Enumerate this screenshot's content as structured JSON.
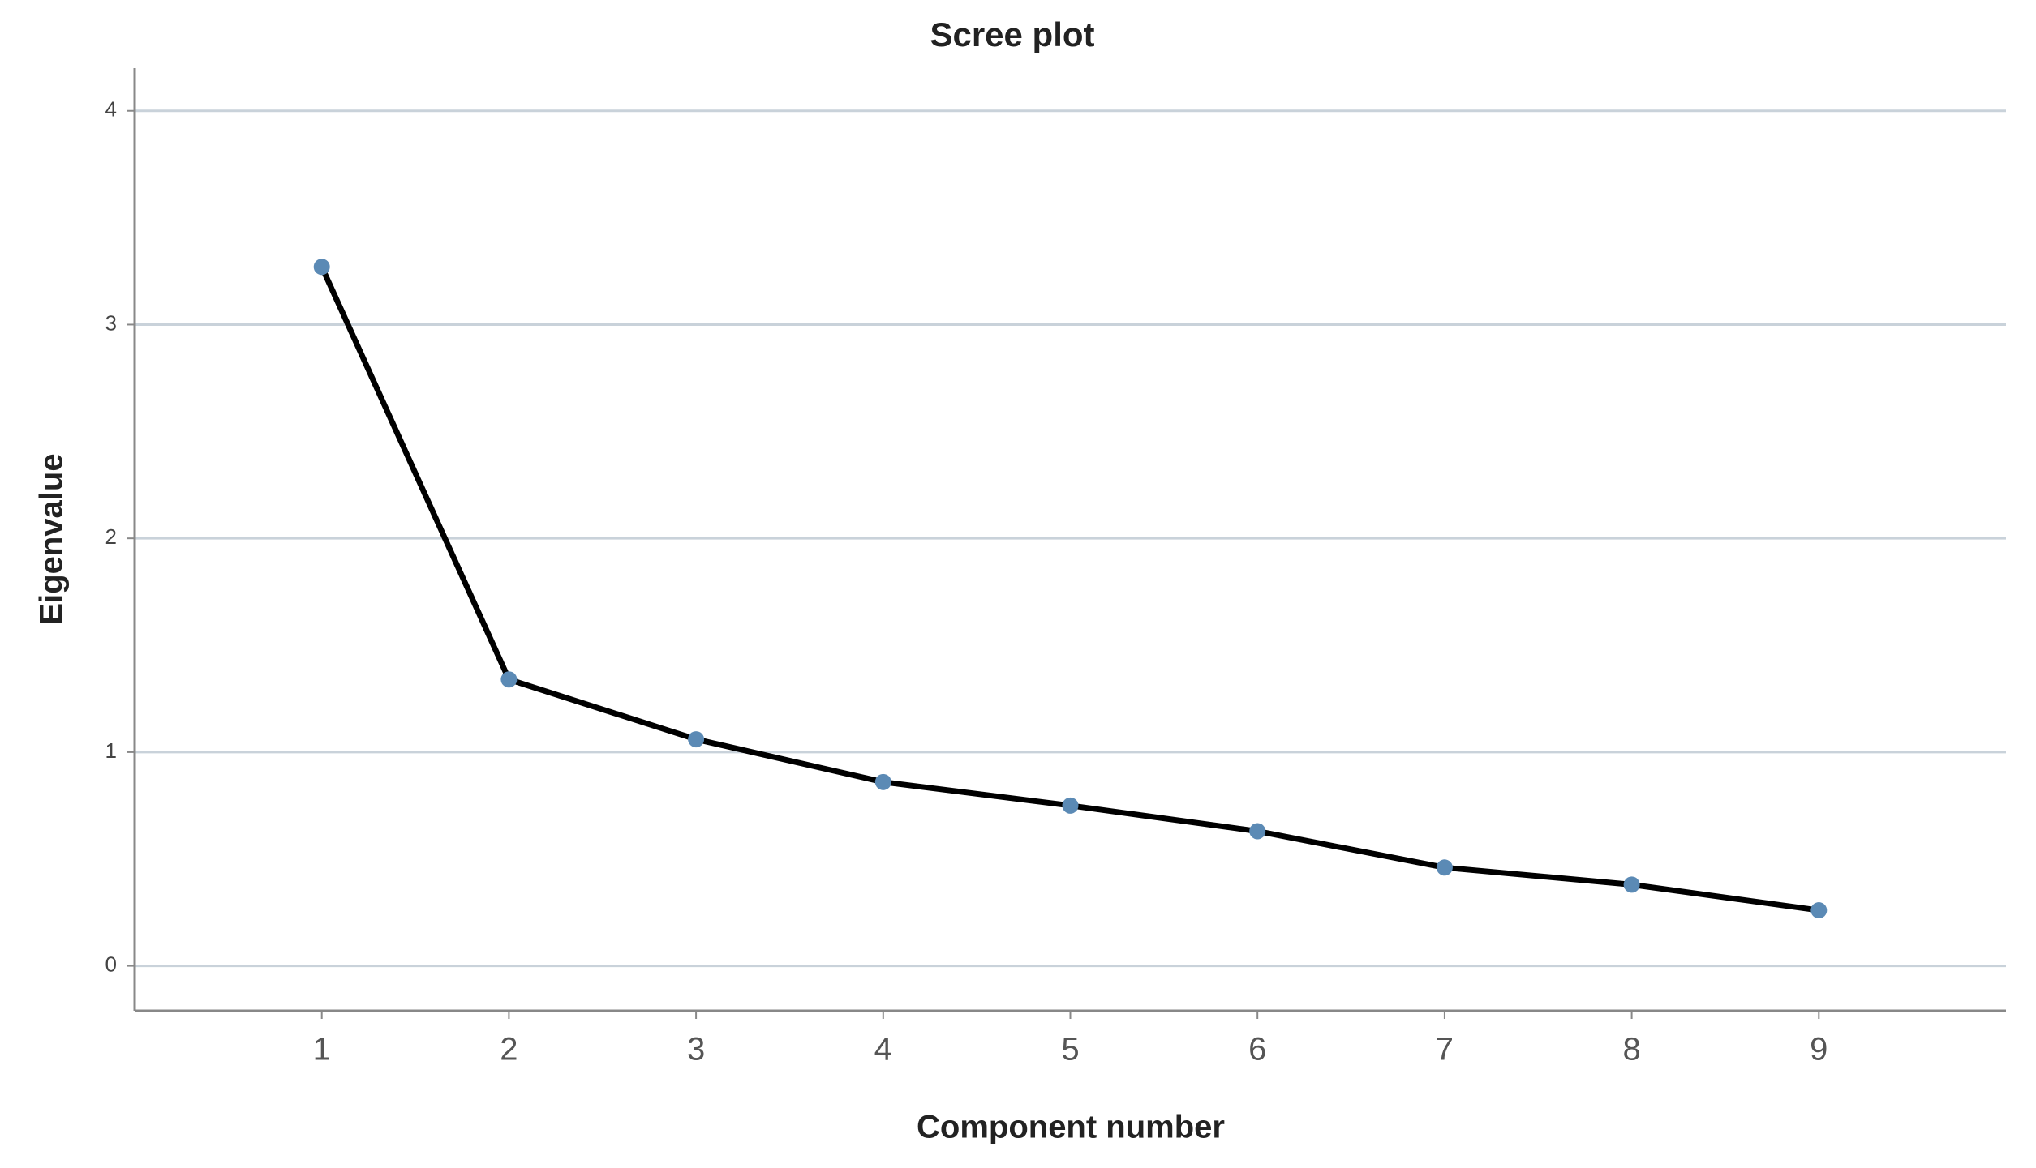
{
  "chart_data": {
    "type": "line",
    "title": "Scree plot",
    "x_label": "Component number",
    "y_label": "Eigenvalue",
    "x": [
      1,
      2,
      3,
      4,
      5,
      6,
      7,
      8,
      9
    ],
    "values": [
      3.27,
      1.34,
      1.06,
      0.86,
      0.75,
      0.63,
      0.46,
      0.38,
      0.26
    ],
    "color": "#000000",
    "marker_color": "#5b8ab5",
    "xlim": [
      0,
      10
    ],
    "xticks": [
      1,
      2,
      3,
      4,
      5,
      6,
      7,
      8,
      9
    ],
    "ylim": [
      -0.21,
      4.2
    ],
    "yticks": [
      0,
      1,
      2,
      3,
      4
    ],
    "grid": true
  }
}
